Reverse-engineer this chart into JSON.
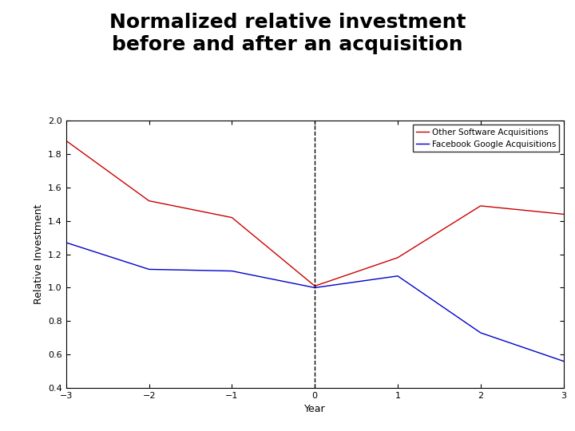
{
  "title": "Normalized relative investment\nbefore and after an acquisition",
  "xlabel": "Year",
  "ylabel": "Relative Investment",
  "xlim": [
    -3,
    3
  ],
  "ylim": [
    0.4,
    2.0
  ],
  "yticks": [
    0.4,
    0.6,
    0.8,
    1.0,
    1.2,
    1.4,
    1.6,
    1.8,
    2.0
  ],
  "xticks": [
    -3,
    -2,
    -1,
    0,
    1,
    2,
    3
  ],
  "red_x": [
    -3,
    -2,
    -1,
    0,
    1,
    2,
    3
  ],
  "red_y": [
    1.88,
    1.52,
    1.42,
    1.01,
    1.18,
    1.49,
    1.44
  ],
  "blue_x": [
    -3,
    -2,
    -1,
    0,
    1,
    2,
    3
  ],
  "blue_y": [
    1.27,
    1.11,
    1.1,
    1.0,
    1.07,
    0.73,
    0.56
  ],
  "red_color": "#cc0000",
  "blue_color": "#0000cc",
  "legend_red": "Other Software Acquisitions",
  "legend_blue": "Facebook Google Acquisitions",
  "vline_x": 0,
  "vline_style": "--",
  "vline_color": "#000000",
  "title_fontsize": 18,
  "axis_label_fontsize": 9,
  "tick_fontsize": 8,
  "legend_fontsize": 7.5,
  "background_color": "#ffffff",
  "plot_bg_color": "#ffffff"
}
